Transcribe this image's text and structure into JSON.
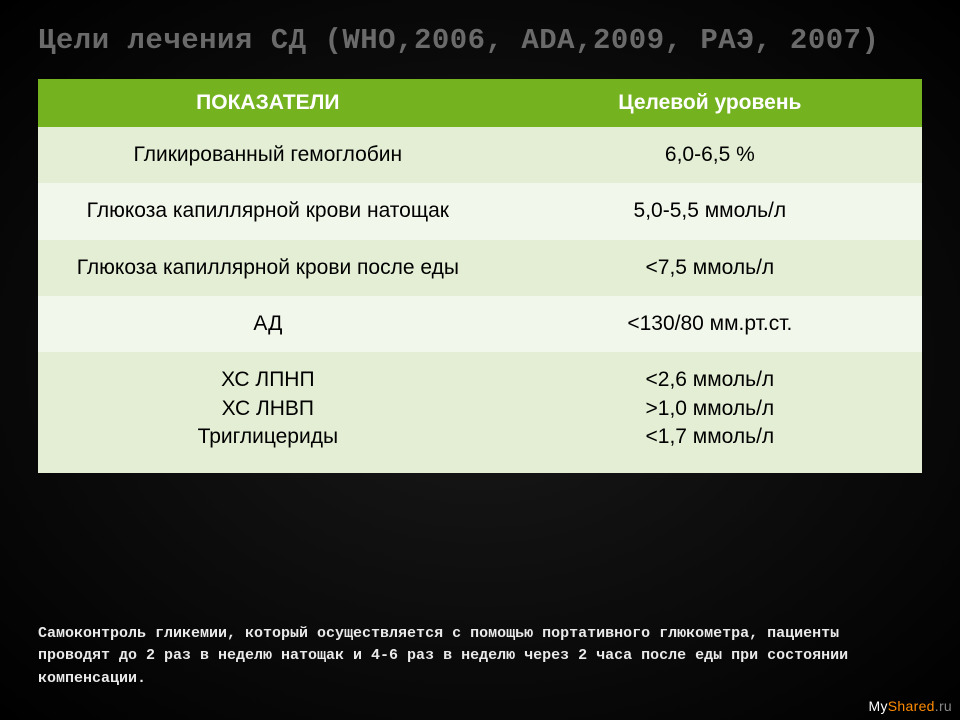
{
  "title": "Цели лечения СД (WHO,2006, ADA,2009, РАЭ, 2007)",
  "table": {
    "header_bg": "#74b21f",
    "row_bg_odd": "#e3eed4",
    "row_bg_even": "#f2f7eb",
    "text_color": "#000000",
    "header_text_color": "#ffffff",
    "font_size_pt": 16,
    "columns": [
      {
        "label": "ПОКАЗАТЕЛИ",
        "width_pct": 52
      },
      {
        "label": "Целевой уровень",
        "width_pct": 48
      }
    ],
    "rows": [
      {
        "indicator": "Гликированный гемоглобин",
        "target": "6,0-6,5 %"
      },
      {
        "indicator": "Глюкоза капиллярной крови натощак",
        "target": "5,0-5,5 ммоль/л"
      },
      {
        "indicator": "Глюкоза капиллярной крови  после еды",
        "target": "<7,5 ммоль/л"
      },
      {
        "indicator": "АД",
        "target": "<130/80 мм.рт.ст."
      },
      {
        "indicator": "ХС ЛПНП\nХС ЛНВП\nТриглицериды",
        "target": "<2,6 ммоль/л\n>1,0 ммоль/л\n<1,7  ммоль/л"
      }
    ]
  },
  "footer_note": "Самоконтроль гликемии, который осуществляется с помощью портативного глюкометра, пациенты  проводят до 2 раз в неделю натощак и 4-6 раз в неделю через 2 часа после еды при состоянии компенсации.",
  "watermark": {
    "my": "My",
    "shared": "Shared",
    "suffix": ".ru"
  },
  "colors": {
    "slide_bg_center": "#1a1a1a",
    "slide_bg_edge": "#000000",
    "title_color": "#6a6a6a",
    "footer_color": "#eaeaea"
  }
}
